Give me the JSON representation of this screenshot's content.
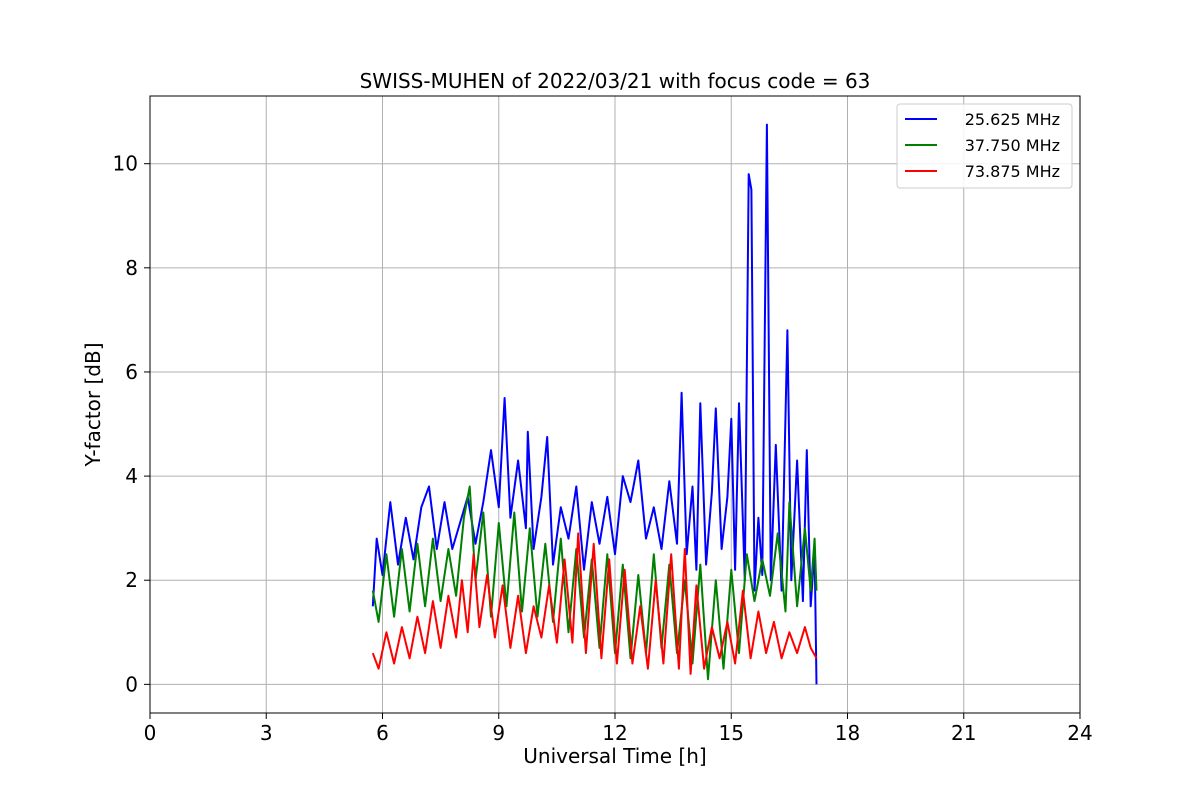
{
  "chart_data": {
    "type": "line",
    "title": "SWISS-MUHEN of 2022/03/21 with focus code = 63",
    "xlabel": "Universal Time [h]",
    "ylabel": "Y-factor [dB]",
    "xlim": [
      0,
      24
    ],
    "ylim": [
      -0.55,
      11.3
    ],
    "xticks": [
      0,
      3,
      6,
      9,
      12,
      15,
      18,
      21,
      24
    ],
    "yticks": [
      0,
      2,
      4,
      6,
      8,
      10
    ],
    "grid": true,
    "legend_position": "top-right",
    "series": [
      {
        "name": "25.625 MHz",
        "color": "#0000ff",
        "points": [
          [
            5.75,
            1.5
          ],
          [
            5.85,
            2.8
          ],
          [
            6.0,
            2.1
          ],
          [
            6.2,
            3.5
          ],
          [
            6.4,
            2.3
          ],
          [
            6.6,
            3.2
          ],
          [
            6.8,
            2.4
          ],
          [
            7.0,
            3.4
          ],
          [
            7.2,
            3.8
          ],
          [
            7.4,
            2.6
          ],
          [
            7.6,
            3.5
          ],
          [
            7.8,
            2.6
          ],
          [
            8.0,
            3.1
          ],
          [
            8.2,
            3.6
          ],
          [
            8.4,
            2.7
          ],
          [
            8.6,
            3.5
          ],
          [
            8.8,
            4.5
          ],
          [
            9.0,
            3.4
          ],
          [
            9.15,
            5.5
          ],
          [
            9.3,
            3.2
          ],
          [
            9.5,
            4.3
          ],
          [
            9.7,
            3.0
          ],
          [
            9.75,
            4.85
          ],
          [
            9.9,
            2.6
          ],
          [
            10.1,
            3.6
          ],
          [
            10.25,
            4.75
          ],
          [
            10.4,
            2.3
          ],
          [
            10.6,
            3.4
          ],
          [
            10.8,
            2.8
          ],
          [
            11.0,
            3.8
          ],
          [
            11.2,
            2.2
          ],
          [
            11.4,
            3.5
          ],
          [
            11.6,
            2.7
          ],
          [
            11.8,
            3.6
          ],
          [
            12.0,
            2.5
          ],
          [
            12.2,
            4.0
          ],
          [
            12.4,
            3.5
          ],
          [
            12.6,
            4.3
          ],
          [
            12.8,
            2.8
          ],
          [
            13.0,
            3.4
          ],
          [
            13.2,
            2.6
          ],
          [
            13.4,
            3.9
          ],
          [
            13.6,
            2.7
          ],
          [
            13.72,
            5.6
          ],
          [
            13.85,
            2.5
          ],
          [
            14.0,
            3.8
          ],
          [
            14.1,
            2.2
          ],
          [
            14.2,
            5.4
          ],
          [
            14.35,
            2.3
          ],
          [
            14.5,
            3.7
          ],
          [
            14.6,
            5.3
          ],
          [
            14.75,
            2.6
          ],
          [
            14.9,
            3.6
          ],
          [
            15.0,
            5.1
          ],
          [
            15.1,
            2.2
          ],
          [
            15.2,
            5.4
          ],
          [
            15.35,
            2.0
          ],
          [
            15.45,
            9.8
          ],
          [
            15.52,
            9.5
          ],
          [
            15.6,
            1.8
          ],
          [
            15.7,
            3.2
          ],
          [
            15.8,
            2.1
          ],
          [
            15.92,
            10.75
          ],
          [
            16.02,
            2.0
          ],
          [
            16.15,
            4.6
          ],
          [
            16.3,
            1.8
          ],
          [
            16.45,
            6.8
          ],
          [
            16.55,
            2.0
          ],
          [
            16.7,
            4.3
          ],
          [
            16.85,
            1.6
          ],
          [
            16.95,
            4.5
          ],
          [
            17.05,
            1.5
          ],
          [
            17.15,
            2.6
          ],
          [
            17.2,
            0.0
          ]
        ]
      },
      {
        "name": "37.750 MHz",
        "color": "#008000",
        "points": [
          [
            5.75,
            1.8
          ],
          [
            5.9,
            1.2
          ],
          [
            6.1,
            2.5
          ],
          [
            6.3,
            1.3
          ],
          [
            6.5,
            2.6
          ],
          [
            6.7,
            1.4
          ],
          [
            6.9,
            2.7
          ],
          [
            7.1,
            1.5
          ],
          [
            7.3,
            2.8
          ],
          [
            7.5,
            1.6
          ],
          [
            7.7,
            2.6
          ],
          [
            7.9,
            1.7
          ],
          [
            8.1,
            3.2
          ],
          [
            8.25,
            3.8
          ],
          [
            8.4,
            2.0
          ],
          [
            8.6,
            3.3
          ],
          [
            8.8,
            1.3
          ],
          [
            9.0,
            3.1
          ],
          [
            9.2,
            1.5
          ],
          [
            9.4,
            3.3
          ],
          [
            9.6,
            1.4
          ],
          [
            9.8,
            3.0
          ],
          [
            10.0,
            1.3
          ],
          [
            10.2,
            2.7
          ],
          [
            10.4,
            1.2
          ],
          [
            10.6,
            2.8
          ],
          [
            10.8,
            1.0
          ],
          [
            11.0,
            2.6
          ],
          [
            11.2,
            0.9
          ],
          [
            11.4,
            2.4
          ],
          [
            11.6,
            0.7
          ],
          [
            11.8,
            2.5
          ],
          [
            12.0,
            0.6
          ],
          [
            12.2,
            2.3
          ],
          [
            12.4,
            0.5
          ],
          [
            12.6,
            2.1
          ],
          [
            12.8,
            0.6
          ],
          [
            13.0,
            2.5
          ],
          [
            13.2,
            0.7
          ],
          [
            13.4,
            2.3
          ],
          [
            13.6,
            0.6
          ],
          [
            13.8,
            2.0
          ],
          [
            14.0,
            0.4
          ],
          [
            14.2,
            2.3
          ],
          [
            14.4,
            0.1
          ],
          [
            14.6,
            2.0
          ],
          [
            14.8,
            0.3
          ],
          [
            15.0,
            2.2
          ],
          [
            15.2,
            0.6
          ],
          [
            15.4,
            2.5
          ],
          [
            15.6,
            1.6
          ],
          [
            15.8,
            2.4
          ],
          [
            16.0,
            1.7
          ],
          [
            16.2,
            2.9
          ],
          [
            16.4,
            1.4
          ],
          [
            16.5,
            3.5
          ],
          [
            16.7,
            1.5
          ],
          [
            16.9,
            3.0
          ],
          [
            17.05,
            1.8
          ],
          [
            17.15,
            2.8
          ],
          [
            17.2,
            1.8
          ]
        ]
      },
      {
        "name": "73.875 MHz",
        "color": "#ff0000",
        "points": [
          [
            5.75,
            0.6
          ],
          [
            5.9,
            0.3
          ],
          [
            6.1,
            1.0
          ],
          [
            6.3,
            0.4
          ],
          [
            6.5,
            1.1
          ],
          [
            6.7,
            0.5
          ],
          [
            6.9,
            1.3
          ],
          [
            7.1,
            0.6
          ],
          [
            7.3,
            1.6
          ],
          [
            7.5,
            0.7
          ],
          [
            7.7,
            1.7
          ],
          [
            7.9,
            0.9
          ],
          [
            8.05,
            2.0
          ],
          [
            8.2,
            1.0
          ],
          [
            8.35,
            2.5
          ],
          [
            8.5,
            1.1
          ],
          [
            8.7,
            2.1
          ],
          [
            8.9,
            0.9
          ],
          [
            9.1,
            1.9
          ],
          [
            9.3,
            0.7
          ],
          [
            9.5,
            1.7
          ],
          [
            9.7,
            0.6
          ],
          [
            9.9,
            1.5
          ],
          [
            10.1,
            0.9
          ],
          [
            10.3,
            1.9
          ],
          [
            10.5,
            0.8
          ],
          [
            10.7,
            2.4
          ],
          [
            10.9,
            0.8
          ],
          [
            11.05,
            2.9
          ],
          [
            11.25,
            0.6
          ],
          [
            11.45,
            2.7
          ],
          [
            11.65,
            0.5
          ],
          [
            11.85,
            2.4
          ],
          [
            12.05,
            0.4
          ],
          [
            12.25,
            2.2
          ],
          [
            12.45,
            0.4
          ],
          [
            12.65,
            1.5
          ],
          [
            12.85,
            0.3
          ],
          [
            13.05,
            2.0
          ],
          [
            13.25,
            0.4
          ],
          [
            13.45,
            2.5
          ],
          [
            13.65,
            0.3
          ],
          [
            13.8,
            2.6
          ],
          [
            13.95,
            0.2
          ],
          [
            14.1,
            1.9
          ],
          [
            14.3,
            0.3
          ],
          [
            14.5,
            1.1
          ],
          [
            14.7,
            0.5
          ],
          [
            14.9,
            1.2
          ],
          [
            15.1,
            0.4
          ],
          [
            15.3,
            1.8
          ],
          [
            15.5,
            0.5
          ],
          [
            15.7,
            1.4
          ],
          [
            15.9,
            0.6
          ],
          [
            16.1,
            1.2
          ],
          [
            16.3,
            0.5
          ],
          [
            16.5,
            1.0
          ],
          [
            16.7,
            0.6
          ],
          [
            16.9,
            1.1
          ],
          [
            17.05,
            0.7
          ],
          [
            17.2,
            0.5
          ]
        ]
      }
    ]
  }
}
